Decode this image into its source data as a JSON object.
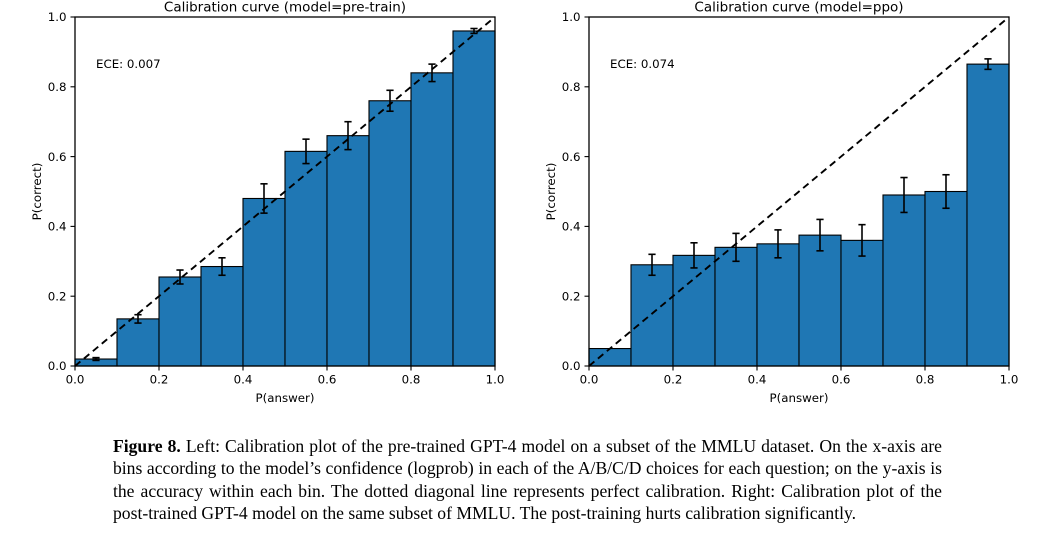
{
  "page": {
    "background_color": "#ffffff"
  },
  "figure_caption": {
    "label": "Figure 8.",
    "text": " Left: Calibration plot of the pre-trained GPT-4 model on a subset of the MMLU dataset. On the x-axis are bins according to the model’s confidence (logprob) in each of the A/B/C/D choices for each question; on the y-axis is the accuracy within each bin. The dotted diagonal line represents perfect calibration. Right: Calibration plot of the post-trained GPT-4 model on the same subset of MMLU. The post-training hurts calibration significantly."
  },
  "chart_data": [
    {
      "type": "bar",
      "title": "Calibration curve (model=pre-train)",
      "annotation": "ECE: 0.007",
      "xlabel": "P(answer)",
      "ylabel": "P(correct)",
      "xlim": [
        0.0,
        1.0
      ],
      "ylim": [
        0.0,
        1.0
      ],
      "xticks": [
        "0.0",
        "0.2",
        "0.4",
        "0.6",
        "0.8",
        "1.0"
      ],
      "yticks": [
        "0.0",
        "0.2",
        "0.4",
        "0.6",
        "0.8",
        "1.0"
      ],
      "grid": false,
      "bin_width": 0.1,
      "bin_centers": [
        0.05,
        0.15,
        0.25,
        0.35,
        0.45,
        0.55,
        0.65,
        0.75,
        0.85,
        0.95
      ],
      "values": [
        0.02,
        0.135,
        0.255,
        0.285,
        0.48,
        0.615,
        0.66,
        0.76,
        0.84,
        0.96
      ],
      "errors": [
        0.004,
        0.012,
        0.02,
        0.025,
        0.042,
        0.035,
        0.04,
        0.03,
        0.025,
        0.007
      ],
      "diagonal_reference_line": true,
      "bar_color": "#1f77b4",
      "bar_edge_color": "#000000",
      "line_color": "#000000"
    },
    {
      "type": "bar",
      "title": "Calibration curve (model=ppo)",
      "annotation": "ECE: 0.074",
      "xlabel": "P(answer)",
      "ylabel": "P(correct)",
      "xlim": [
        0.0,
        1.0
      ],
      "ylim": [
        0.0,
        1.0
      ],
      "xticks": [
        "0.0",
        "0.2",
        "0.4",
        "0.6",
        "0.8",
        "1.0"
      ],
      "yticks": [
        "0.0",
        "0.2",
        "0.4",
        "0.6",
        "0.8",
        "1.0"
      ],
      "grid": false,
      "bin_width": 0.1,
      "bin_centers": [
        0.05,
        0.15,
        0.25,
        0.35,
        0.45,
        0.55,
        0.65,
        0.75,
        0.85,
        0.95
      ],
      "values": [
        0.05,
        0.29,
        0.317,
        0.34,
        0.35,
        0.375,
        0.36,
        0.49,
        0.5,
        0.865
      ],
      "errors": [
        0,
        0.03,
        0.036,
        0.04,
        0.04,
        0.045,
        0.045,
        0.05,
        0.048,
        0.015
      ],
      "diagonal_reference_line": true,
      "bar_color": "#1f77b4",
      "bar_edge_color": "#000000",
      "line_color": "#000000"
    }
  ]
}
